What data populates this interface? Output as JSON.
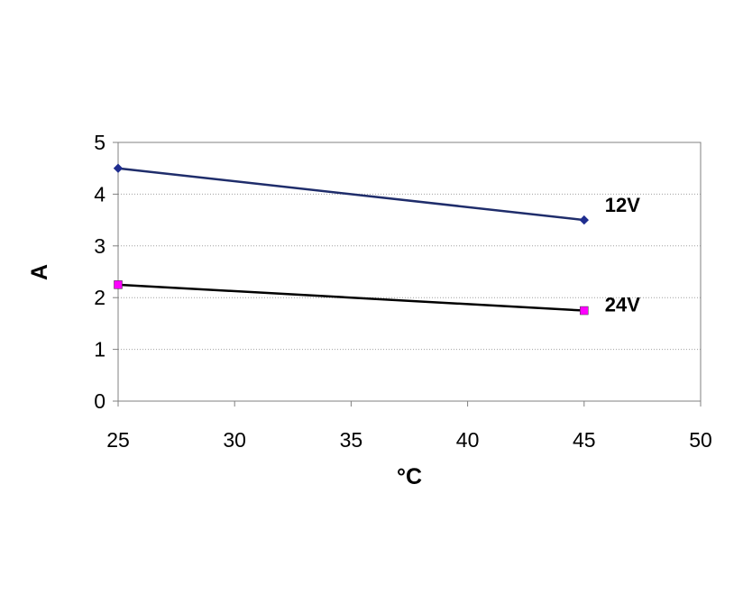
{
  "chart_data": {
    "type": "line",
    "title": "",
    "xlabel": "°C",
    "ylabel": "A",
    "xlim": [
      25,
      50
    ],
    "ylim": [
      0,
      5
    ],
    "xticks": [
      25,
      30,
      35,
      40,
      45,
      50
    ],
    "yticks": [
      0,
      1,
      2,
      3,
      4,
      5
    ],
    "grid": "horizontal dotted",
    "legend": "none (series labeled inline at right end of lines)",
    "series": [
      {
        "name": "12V",
        "color": "#1f2d6b",
        "marker": "diamond",
        "marker_color": "#1f2d8f",
        "x": [
          25,
          45
        ],
        "y": [
          4.5,
          3.5
        ]
      },
      {
        "name": "24V",
        "color": "#000000",
        "marker": "square",
        "marker_color": "#ff00ff",
        "x": [
          25,
          45
        ],
        "y": [
          2.25,
          1.75
        ]
      }
    ]
  }
}
